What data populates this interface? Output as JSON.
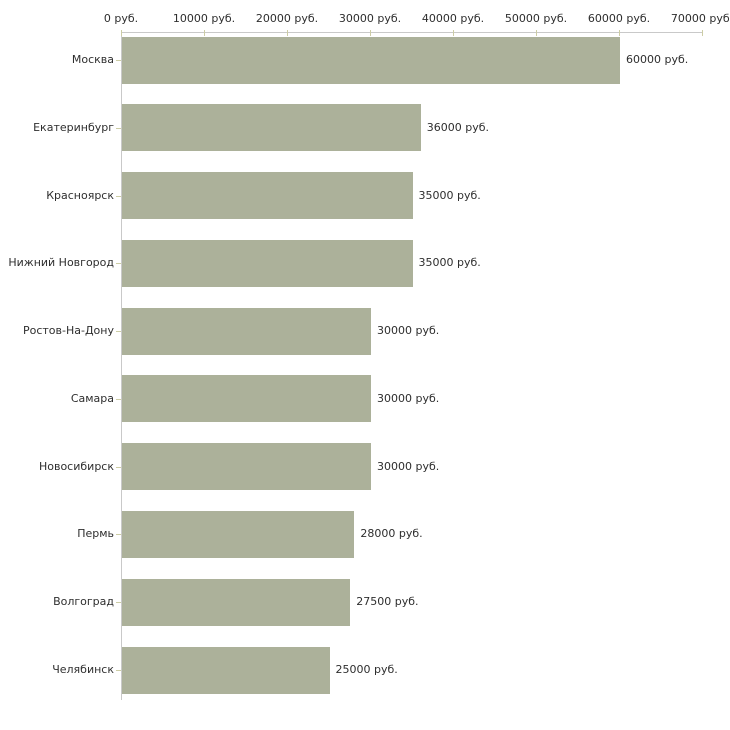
{
  "chart_data": {
    "type": "bar",
    "orientation": "horizontal",
    "title": "",
    "xlabel": "",
    "ylabel": "",
    "unit": "руб.",
    "categories": [
      "Москва",
      "Екатеринбург",
      "Красноярск",
      "Нижний Новгород",
      "Ростов-На-Дону",
      "Самара",
      "Новосибирск",
      "Пермь",
      "Волгоград",
      "Челябинск"
    ],
    "values": [
      60000,
      36000,
      35000,
      35000,
      30000,
      30000,
      30000,
      28000,
      27500,
      25000
    ],
    "value_labels": [
      "60000 руб.",
      "36000 руб.",
      "35000 руб.",
      "35000 руб.",
      "30000 руб.",
      "30000 руб.",
      "30000 руб.",
      "28000 руб.",
      "27500 руб.",
      "25000 руб."
    ],
    "x_ticks": [
      0,
      10000,
      20000,
      30000,
      40000,
      50000,
      60000,
      70000
    ],
    "x_tick_labels": [
      "0 руб.",
      "10000 руб.",
      "20000 руб.",
      "30000 руб.",
      "40000 руб.",
      "50000 руб.",
      "60000 руб.",
      "70000 руб."
    ],
    "xlim": [
      0,
      70000
    ],
    "grid": false,
    "legend": false,
    "colors": {
      "bar": "#acb19a",
      "axis_line": "#c9c9c9",
      "tick": "#cdcda5",
      "text": "#2e2e2e",
      "background": "#ffffff"
    }
  }
}
